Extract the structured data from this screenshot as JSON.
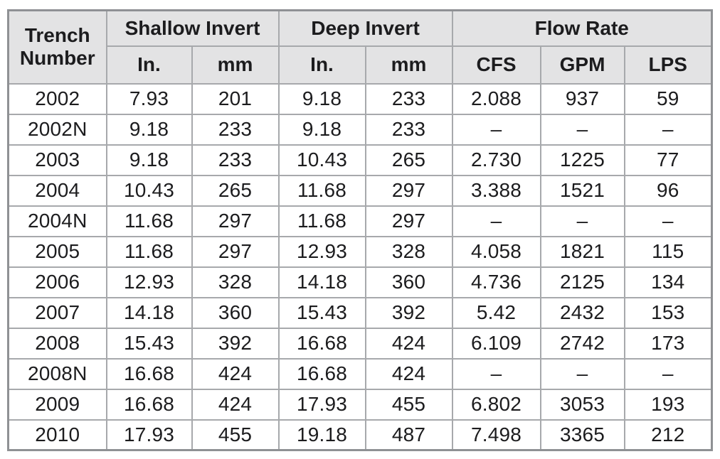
{
  "table": {
    "columns": {
      "trench_header": "Trench\nNumber",
      "groups": [
        {
          "label": "Shallow Invert",
          "colspan": 2
        },
        {
          "label": "Deep Invert",
          "colspan": 2
        },
        {
          "label": "Flow Rate",
          "colspan": 3
        }
      ],
      "subheaders": [
        "In.",
        "mm",
        "In.",
        "mm",
        "CFS",
        "GPM",
        "LPS"
      ]
    },
    "rows": [
      {
        "trench": "2002",
        "values": [
          "7.93",
          "201",
          "9.18",
          "233",
          "2.088",
          "937",
          "59"
        ]
      },
      {
        "trench": "2002N",
        "values": [
          "9.18",
          "233",
          "9.18",
          "233",
          "–",
          "–",
          "–"
        ]
      },
      {
        "trench": "2003",
        "values": [
          "9.18",
          "233",
          "10.43",
          "265",
          "2.730",
          "1225",
          "77"
        ]
      },
      {
        "trench": "2004",
        "values": [
          "10.43",
          "265",
          "11.68",
          "297",
          "3.388",
          "1521",
          "96"
        ]
      },
      {
        "trench": "2004N",
        "values": [
          "11.68",
          "297",
          "11.68",
          "297",
          "–",
          "–",
          "–"
        ]
      },
      {
        "trench": "2005",
        "values": [
          "11.68",
          "297",
          "12.93",
          "328",
          "4.058",
          "1821",
          "115"
        ]
      },
      {
        "trench": "2006",
        "values": [
          "12.93",
          "328",
          "14.18",
          "360",
          "4.736",
          "2125",
          "134"
        ]
      },
      {
        "trench": "2007",
        "values": [
          "14.18",
          "360",
          "15.43",
          "392",
          "5.42",
          "2432",
          "153"
        ]
      },
      {
        "trench": "2008",
        "values": [
          "15.43",
          "392",
          "16.68",
          "424",
          "6.109",
          "2742",
          "173"
        ]
      },
      {
        "trench": "2008N",
        "values": [
          "16.68",
          "424",
          "16.68",
          "424",
          "–",
          "–",
          "–"
        ]
      },
      {
        "trench": "2009",
        "values": [
          "16.68",
          "424",
          "17.93",
          "455",
          "6.802",
          "3053",
          "193"
        ]
      },
      {
        "trench": "2010",
        "values": [
          "17.93",
          "455",
          "19.18",
          "487",
          "7.498",
          "3365",
          "212"
        ]
      }
    ]
  },
  "colors": {
    "header_bg": "#e3e3e4",
    "border_inner": "#a7a9ac",
    "border_outer": "#8f9194",
    "text": "#1c1c1e",
    "body_bg": "#ffffff"
  }
}
